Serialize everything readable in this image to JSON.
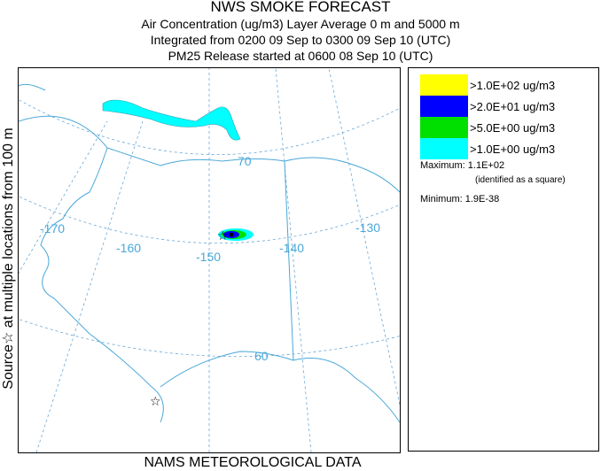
{
  "header": {
    "title": "NWS SMOKE FORECAST",
    "line1": "Air Concentration (ug/m3) Layer Average    0 m and  5000 m",
    "line2": "Integrated from 0200 09 Sep to 0300 09 Sep 10 (UTC)",
    "line3": "PM25 Release started at 0600 08 Sep 10 (UTC)"
  },
  "side_label": "Source☆ at multiple locations  from  100 m",
  "footer": "NAMS METEOROLOGICAL DATA",
  "map": {
    "lon_labels": [
      "-170",
      "-160",
      "-150",
      "-140",
      "-130"
    ],
    "lat_labels": [
      "70",
      "60"
    ],
    "source_marker": "☆",
    "plume_colors": {
      "cyan": "#00ffff",
      "green": "#00e000",
      "blue": "#0000ff",
      "line": "#4aa8d8",
      "grid": "#6aa8d8"
    }
  },
  "legend": {
    "items": [
      {
        "color": "#ffff00",
        "label": ">1.0E+02 ug/m3"
      },
      {
        "color": "#0000ff",
        "label": ">2.0E+01 ug/m3"
      },
      {
        "color": "#00e000",
        "label": ">5.0E+00 ug/m3"
      },
      {
        "color": "#00ffff",
        "label": ">1.0E+00 ug/m3"
      }
    ],
    "maximum": "Maximum: 1.1E+02",
    "max_note": "(identified as a square)",
    "minimum": "Minimum: 1.9E-38"
  }
}
